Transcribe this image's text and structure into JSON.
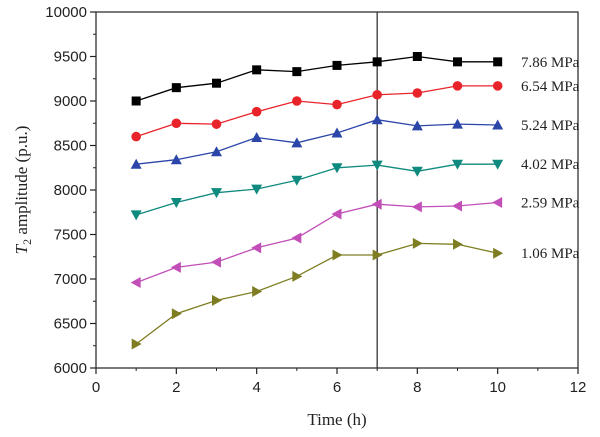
{
  "chart_data": {
    "type": "line",
    "title": "",
    "xlabel": "Time (h)",
    "ylabel_var": "T",
    "ylabel_sub": "2",
    "ylabel_rest": " amplitude (p.u.)",
    "xlim": [
      0,
      12
    ],
    "ylim": [
      6000,
      10000
    ],
    "xticks": [
      "0",
      "2",
      "4",
      "6",
      "8",
      "10",
      "12"
    ],
    "yticks": [
      "6000",
      "6500",
      "7000",
      "7500",
      "8000",
      "8500",
      "9000",
      "9500",
      "10000"
    ],
    "grid": false,
    "legend_placement": "right (inline labels)",
    "vline_x": 7,
    "x": [
      1,
      2,
      3,
      4,
      5,
      6,
      7,
      8,
      9,
      10
    ],
    "series": [
      {
        "name": "7.86 MPa",
        "color": "#000000",
        "marker": "square",
        "values": [
          9000,
          9150,
          9200,
          9350,
          9330,
          9400,
          9440,
          9500,
          9440,
          9440
        ]
      },
      {
        "name": "6.54 MPa",
        "color": "#e8242a",
        "marker": "circle",
        "values": [
          8600,
          8750,
          8740,
          8880,
          9000,
          8960,
          9070,
          9090,
          9170,
          9170
        ]
      },
      {
        "name": "5.24 MPa",
        "color": "#2b46a8",
        "marker": "triangle-up",
        "values": [
          8290,
          8340,
          8430,
          8590,
          8530,
          8640,
          8790,
          8720,
          8740,
          8730
        ]
      },
      {
        "name": "4.02 MPa",
        "color": "#0e8a7e",
        "marker": "triangle-down",
        "values": [
          7720,
          7860,
          7970,
          8010,
          8110,
          8250,
          8280,
          8210,
          8290,
          8290
        ]
      },
      {
        "name": "2.59 MPa",
        "color": "#c24fb8",
        "marker": "triangle-left",
        "values": [
          6960,
          7130,
          7190,
          7350,
          7460,
          7730,
          7840,
          7810,
          7820,
          7860
        ]
      },
      {
        "name": "1.06 MPa",
        "color": "#7f7d22",
        "marker": "triangle-right",
        "values": [
          6270,
          6610,
          6760,
          6860,
          7030,
          7270,
          7270,
          7400,
          7390,
          7290
        ]
      }
    ]
  }
}
